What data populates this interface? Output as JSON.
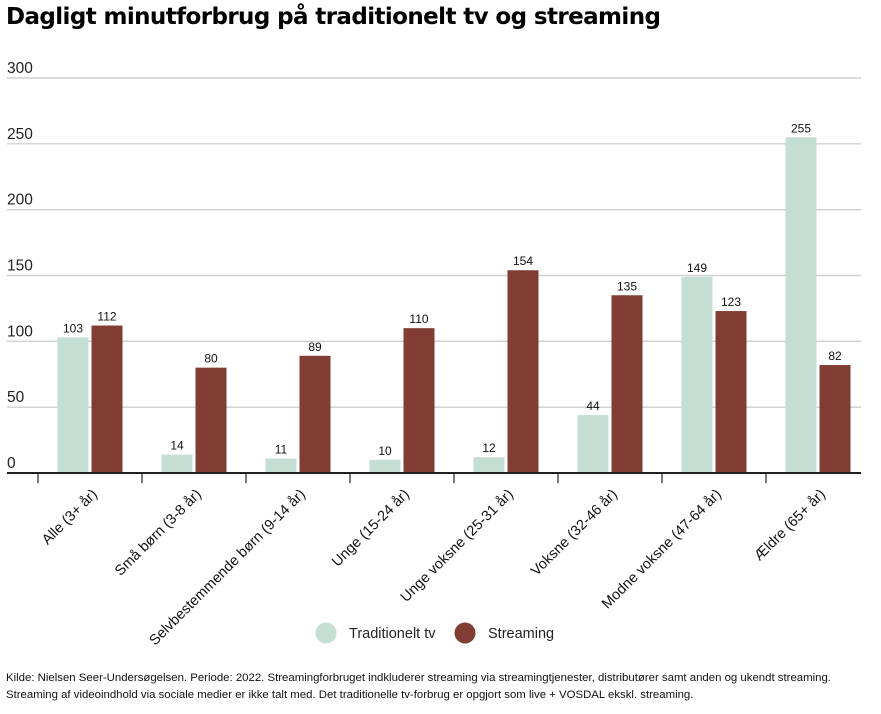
{
  "chart_data": {
    "type": "bar",
    "title": "Dagligt minutforbrug på traditionelt tv og streaming",
    "categories": [
      "Alle (3+ år)",
      "Små børn (3-8 år)",
      "Selvbestemmende børn (9-14 år)",
      "Unge (15-24 år)",
      "Unge voksne (25-31 år)",
      "Voksne (32-46 år)",
      "Modne voksne (47-64 år)",
      "Ældre (65+ år)"
    ],
    "series": [
      {
        "name": "Traditionelt tv",
        "color": "#c5ded3",
        "values": [
          103,
          14,
          11,
          10,
          12,
          44,
          149,
          255
        ]
      },
      {
        "name": "Streaming",
        "color": "#813c33",
        "values": [
          112,
          80,
          89,
          110,
          154,
          135,
          123,
          82
        ]
      }
    ],
    "ylim": [
      0,
      300
    ],
    "yticks": [
      0,
      50,
      100,
      150,
      200,
      250,
      300
    ],
    "grid": true,
    "legend": "bottom-center",
    "xlabel": "",
    "ylabel": ""
  },
  "source_note": [
    "Kilde: Nielsen Seer-Undersøgelsen. Periode: 2022. Streamingforbruget indkluderer streaming via streamingtjenester, distributører samt anden og ukendt streaming.",
    "Streaming af videoindhold via sociale medier er ikke talt med. Det traditionelle tv-forbrug er opgjort som live + VOSDAL ekskl. streaming."
  ]
}
